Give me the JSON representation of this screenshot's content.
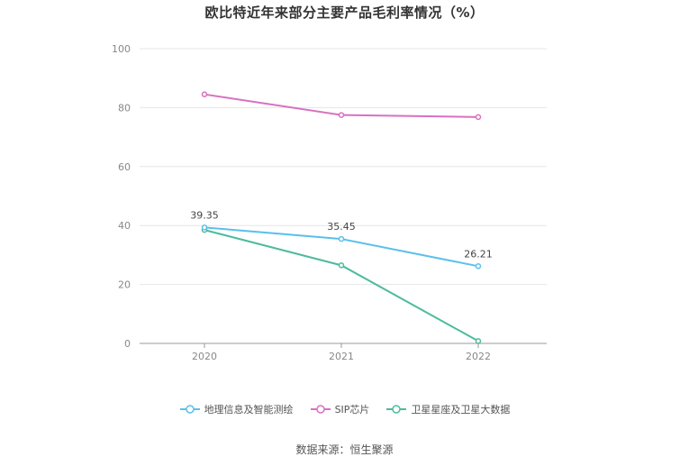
{
  "title": "欧比特近年来部分主要产品毛利率情况（%）",
  "source": "数据来源：恒生聚源",
  "chart_data": {
    "type": "line",
    "categories": [
      "2020",
      "2021",
      "2022"
    ],
    "ylim": [
      0,
      100
    ],
    "yticks": [
      "0",
      "20",
      "40",
      "60",
      "80",
      "100"
    ],
    "grid": true,
    "legend": "bottom",
    "series": [
      {
        "name": "地理信息及智能测绘",
        "values": [
          39.35,
          35.45,
          26.21
        ],
        "labels": [
          "39.35",
          "35.45",
          "26.21"
        ],
        "color": "#5bc0eb"
      },
      {
        "name": "SIP芯片",
        "values": [
          84.5,
          77.5,
          76.8
        ],
        "labels": [],
        "color": "#d871c0"
      },
      {
        "name": "卫星星座及卫星大数据",
        "values": [
          38.5,
          26.5,
          0.8
        ],
        "labels": [],
        "color": "#4dbb9d"
      }
    ]
  }
}
